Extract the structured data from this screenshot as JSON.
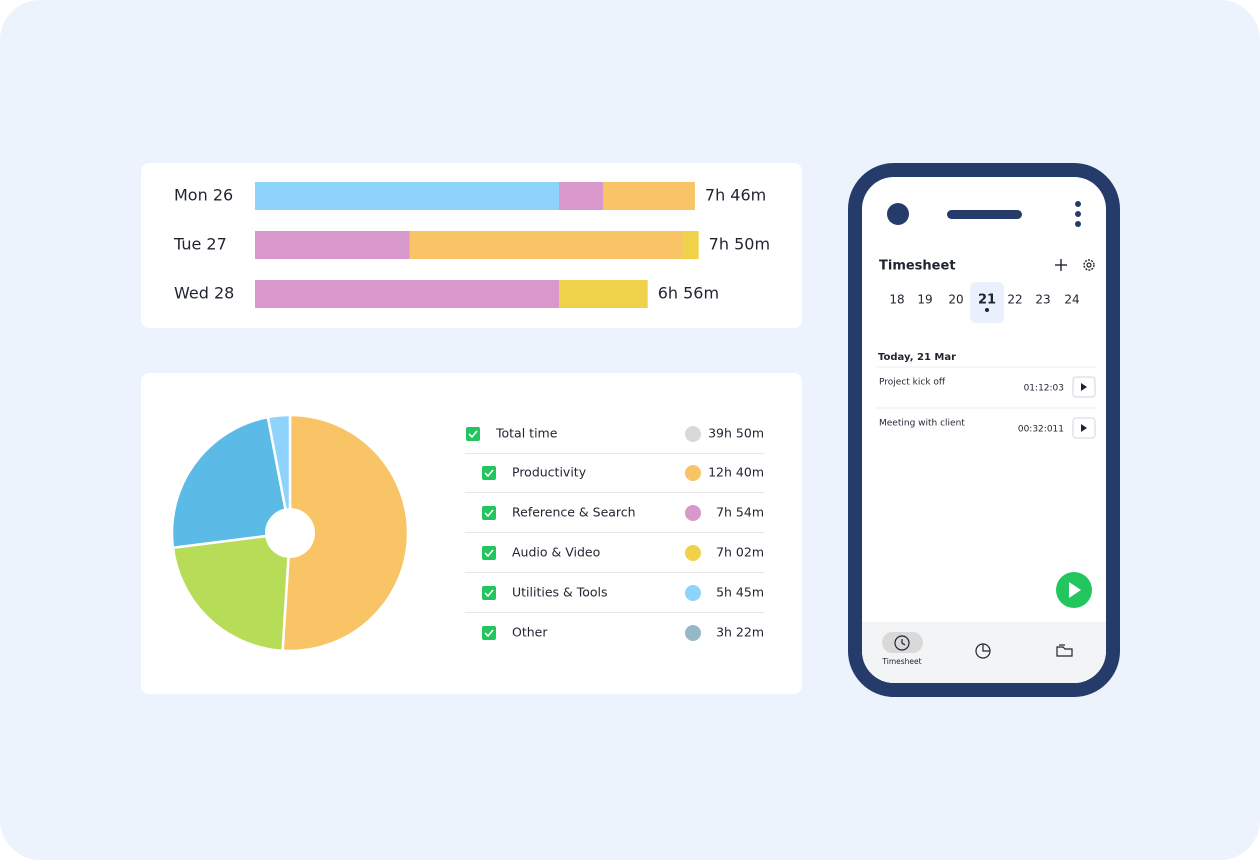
{
  "daily_bars": {
    "type": "stacked-bar",
    "rows": [
      {
        "label": "Mon 26",
        "total": "7h 46m",
        "segments": [
          {
            "color": "#8dd3fb",
            "value": 322
          },
          {
            "color": "#d898cc",
            "value": 47
          },
          {
            "color": "#f8c465",
            "value": 97
          }
        ]
      },
      {
        "label": "Tue 27",
        "total": "7h 50m",
        "segments": [
          {
            "color": "#d898cc",
            "value": 164
          },
          {
            "color": "#f8c465",
            "value": 290
          },
          {
            "color": "#f0d24a",
            "value": 16
          }
        ]
      },
      {
        "label": "Wed 28",
        "total": "6h 56m",
        "segments": [
          {
            "color": "#d898cc",
            "value": 322
          },
          {
            "color": "#f0d24a",
            "value": 94
          }
        ]
      }
    ]
  },
  "pie": {
    "type": "pie",
    "series": [
      {
        "color": "#f8c465",
        "value": 51
      },
      {
        "color": "#b6dc58",
        "value": 22
      },
      {
        "color": "#5bbae6",
        "value": 24
      },
      {
        "color": "#8dd3fb",
        "value": 3
      }
    ]
  },
  "legend": [
    {
      "label": "Total time",
      "color": "#d9d9d9",
      "value": "39h 50m"
    },
    {
      "label": "Productivity",
      "color": "#f8c465",
      "value": "12h 40m"
    },
    {
      "label": "Reference & Search",
      "color": "#d898cc",
      "value": "7h 54m"
    },
    {
      "label": "Audio & Video",
      "color": "#f0d24a",
      "value": "7h 02m"
    },
    {
      "label": "Utilities & Tools",
      "color": "#8dd3fb",
      "value": "5h 45m"
    },
    {
      "label": "Other",
      "color": "#95b9c7",
      "value": "3h 22m"
    }
  ],
  "phone": {
    "title": "Timesheet",
    "dates": [
      18,
      19,
      20,
      21,
      22,
      23,
      24
    ],
    "selected_date": 21,
    "section": "Today, 21 Mar",
    "entries": [
      {
        "name": "Project kick off",
        "time": "01:12:03"
      },
      {
        "name": "Meeting with client",
        "time": "00:32:011"
      }
    ],
    "nav_label": "Timesheet"
  }
}
